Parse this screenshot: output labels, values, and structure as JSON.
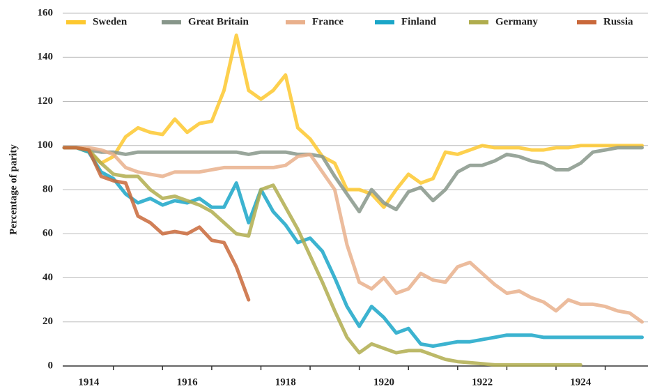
{
  "chart_data": {
    "type": "line",
    "ylabel": "Percentage of parity",
    "x": [
      1914.0,
      1914.25,
      1914.5,
      1914.75,
      1915.0,
      1915.25,
      1915.5,
      1915.75,
      1916.0,
      1916.25,
      1916.5,
      1916.75,
      1917.0,
      1917.25,
      1917.5,
      1917.75,
      1918.0,
      1918.25,
      1918.5,
      1918.75,
      1919.0,
      1919.25,
      1919.5,
      1919.75,
      1920.0,
      1920.25,
      1920.5,
      1920.75,
      1921.0,
      1921.25,
      1921.5,
      1921.75,
      1922.0,
      1922.25,
      1922.5,
      1922.75,
      1923.0,
      1923.25,
      1923.5,
      1923.75,
      1924.0,
      1924.25,
      1924.5,
      1924.75,
      1925.0,
      1925.25,
      1925.5,
      1925.75
    ],
    "series": [
      {
        "name": "Sweden",
        "color": "#fdc82f",
        "values": [
          99,
          99,
          97,
          92,
          95,
          104,
          108,
          106,
          105,
          112,
          106,
          110,
          111,
          125,
          150,
          125,
          121,
          125,
          132,
          108,
          103,
          95,
          92,
          80,
          80,
          78,
          72,
          80,
          87,
          83,
          85,
          97,
          96,
          98,
          100,
          99,
          99,
          99,
          98,
          98,
          99,
          99,
          100,
          100,
          100,
          100,
          100,
          100
        ]
      },
      {
        "name": "Great Britain",
        "color": "#87968a",
        "values": [
          99,
          99,
          98,
          97,
          97,
          96,
          97,
          97,
          97,
          97,
          97,
          97,
          97,
          97,
          97,
          96,
          97,
          97,
          97,
          96,
          96,
          95,
          86,
          78,
          70,
          80,
          74,
          71,
          79,
          81,
          75,
          80,
          88,
          91,
          91,
          93,
          96,
          95,
          93,
          92,
          89,
          89,
          92,
          97,
          98,
          99,
          99,
          99
        ]
      },
      {
        "name": "France",
        "color": "#e9b08c",
        "values": [
          99,
          99,
          99,
          98,
          96,
          90,
          88,
          87,
          86,
          88,
          88,
          88,
          89,
          90,
          90,
          90,
          90,
          90,
          91,
          95,
          96,
          88,
          80,
          55,
          38,
          35,
          40,
          33,
          35,
          42,
          39,
          38,
          45,
          47,
          42,
          37,
          33,
          34,
          31,
          29,
          25,
          30,
          28,
          28,
          27,
          25,
          24,
          20
        ]
      },
      {
        "name": "Finland",
        "color": "#1aa6c8",
        "values": [
          99,
          99,
          97,
          88,
          85,
          78,
          74,
          76,
          73,
          75,
          74,
          76,
          72,
          72,
          83,
          65,
          80,
          70,
          64,
          56,
          58,
          52,
          40,
          27,
          18,
          27,
          22,
          15,
          17,
          10,
          9,
          10,
          11,
          11,
          12,
          13,
          14,
          14,
          14,
          13,
          13,
          13,
          13,
          13,
          13,
          13,
          13,
          13
        ]
      },
      {
        "name": "Germany",
        "color": "#b0ad4e",
        "values": [
          99,
          99,
          98,
          92,
          87,
          86,
          86,
          80,
          76,
          77,
          75,
          73,
          70,
          65,
          60,
          59,
          80,
          82,
          72,
          62,
          50,
          38,
          25,
          13,
          6,
          10,
          8,
          6,
          7,
          7,
          5,
          3,
          2,
          1.5,
          1,
          0.5,
          0.5,
          0.5,
          0.5,
          0.5,
          0.5,
          0.5,
          0.5,
          null,
          null,
          null,
          null,
          null
        ]
      },
      {
        "name": "Russia",
        "color": "#c9683a",
        "values": [
          99,
          99,
          98,
          86,
          84,
          83,
          68,
          65,
          60,
          61,
          60,
          63,
          57,
          56,
          45,
          30,
          null,
          null,
          null,
          null,
          null,
          null,
          null,
          null,
          null,
          null,
          null,
          null,
          null,
          null,
          null,
          null,
          null,
          null,
          null,
          null,
          null,
          null,
          null,
          null,
          null,
          null,
          null,
          null,
          null,
          null,
          null,
          null
        ]
      }
    ],
    "xlim": [
      1913.97,
      1925.87
    ],
    "xticks": [
      {
        "value": 1914.5,
        "label": "1914"
      },
      {
        "value": 1916.5,
        "label": "1916"
      },
      {
        "value": 1918.5,
        "label": "1918"
      },
      {
        "value": 1920.5,
        "label": "1920"
      },
      {
        "value": 1922.5,
        "label": "1922"
      },
      {
        "value": 1924.5,
        "label": "1924"
      }
    ],
    "xminor": [
      1915,
      1916,
      1917,
      1918,
      1919,
      1920,
      1921,
      1922,
      1923,
      1924,
      1925
    ],
    "ylim": [
      0,
      160
    ],
    "yticks": [
      0,
      20,
      40,
      60,
      80,
      100,
      120,
      140,
      160
    ],
    "grid": true
  }
}
